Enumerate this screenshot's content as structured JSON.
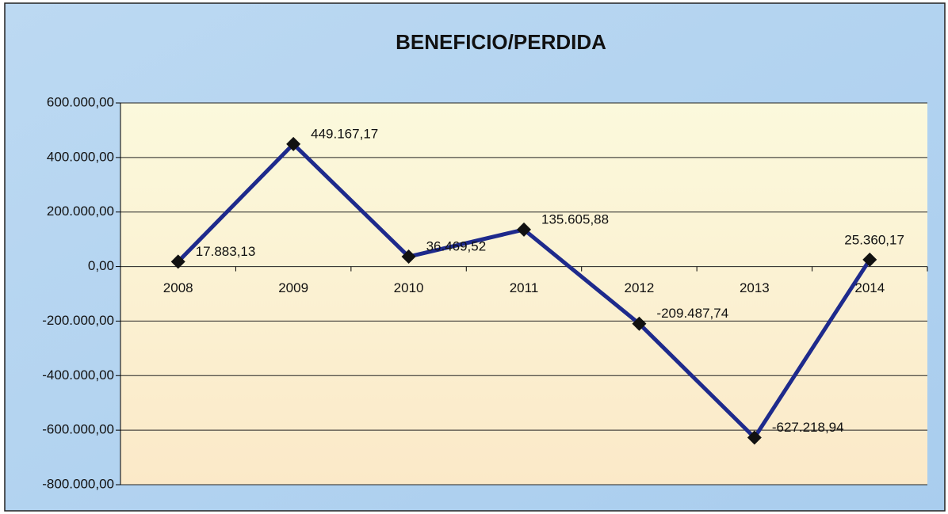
{
  "chart_data": {
    "type": "line",
    "title": "BENEFICIO/PERDIDA",
    "categories": [
      "2008",
      "2009",
      "2010",
      "2011",
      "2012",
      "2013",
      "2014"
    ],
    "series": [
      {
        "name": "BENEFICIO/PERDIDA",
        "color": "#1e2a8c",
        "values": [
          17883.13,
          449167.17,
          36469.52,
          135605.88,
          -209487.74,
          -627218.94,
          25360.17
        ],
        "value_labels": [
          "17.883,13",
          "449.167,17",
          "36.469,52",
          "135.605,88",
          "-209.487,74",
          "-627.218,94",
          "25.360,17"
        ]
      }
    ],
    "ylim": [
      -800000,
      600000
    ],
    "yticks": [
      {
        "value": -800000,
        "label": "-800.000,00"
      },
      {
        "value": -600000,
        "label": "-600.000,00"
      },
      {
        "value": -400000,
        "label": "-400.000,00"
      },
      {
        "value": -200000,
        "label": "-200.000,00"
      },
      {
        "value": 0,
        "label": "0,00"
      },
      {
        "value": 200000,
        "label": "200.000,00"
      },
      {
        "value": 400000,
        "label": "400.000,00"
      },
      {
        "value": 600000,
        "label": "600.000,00"
      }
    ],
    "grid": true
  }
}
